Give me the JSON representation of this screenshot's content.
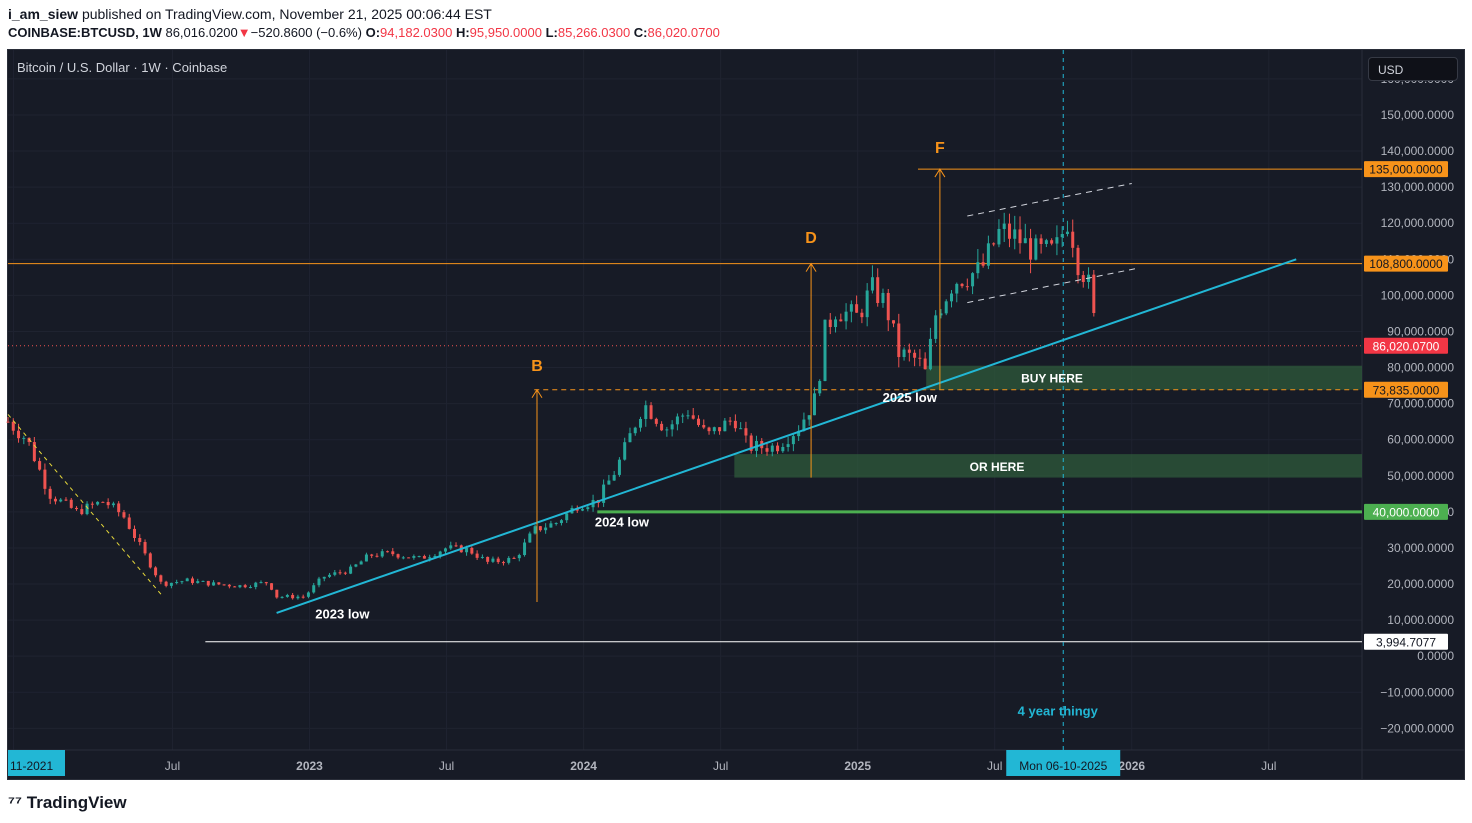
{
  "header": {
    "author": "i_am_siew",
    "published_text": "published on TradingView.com, November 21, 2025 00:06:44 EST",
    "symbol": "COINBASE:BTCUSD, 1W",
    "last": "86,016.0200",
    "change": "−520.8600 (−0.6%)",
    "o_label": "O:",
    "o_value": "94,182.0300",
    "h_label": "H:",
    "h_value": "95,950.0000",
    "l_label": "L:",
    "l_value": "85,266.0300",
    "c_label": "C:",
    "c_value": "86,020.0700"
  },
  "chart_title": "Bitcoin / U.S. Dollar · 1W · Coinbase",
  "currency_button": "USD",
  "branding": "TradingView",
  "colors": {
    "background": "#171b26",
    "up": "#26a69a",
    "down": "#ef5350",
    "trendline": "#22b7d5",
    "orange": "#f7931a",
    "green_line": "#4caf50",
    "zone": "#2f5b3b"
  },
  "chart_data": {
    "type": "candlestick",
    "title": "Bitcoin / U.S. Dollar · 1W · Coinbase",
    "ylim": [
      -26000,
      168000
    ],
    "y_ticks": [
      -20000,
      -10000,
      0,
      10000,
      20000,
      30000,
      40000,
      50000,
      60000,
      70000,
      80000,
      90000,
      100000,
      110000,
      120000,
      130000,
      140000,
      150000,
      160000
    ],
    "y_tick_labels": [
      "−20,000.0000",
      "−10,000.0000",
      "0.0000",
      "10,000.0000",
      "20,000.0000",
      "30,000.0000",
      "40,000.0000",
      "50,000.0000",
      "60,000.0000",
      "70,000.0000",
      "80,000.0000",
      "90,000.0000",
      "100,000.0000",
      "110,000.0000",
      "120,000.0000",
      "130,000.0000",
      "140,000.0000",
      "150,000.0000",
      "160,000.0000"
    ],
    "xlim": [
      2021.9,
      2026.84
    ],
    "x_ticks": [
      {
        "t": 2021.92,
        "label": "11-2021",
        "highlight": true
      },
      {
        "t": 2022.5,
        "label": "Jul"
      },
      {
        "t": 2023.0,
        "label": "2023",
        "bold": true
      },
      {
        "t": 2023.5,
        "label": "Jul"
      },
      {
        "t": 2024.0,
        "label": "2024",
        "bold": true
      },
      {
        "t": 2024.5,
        "label": "Jul"
      },
      {
        "t": 2025.0,
        "label": "2025",
        "bold": true
      },
      {
        "t": 2025.5,
        "label": "Jul"
      },
      {
        "t": 2026.0,
        "label": "2026",
        "bold": true
      },
      {
        "t": 2026.5,
        "label": "Jul"
      }
    ],
    "crosshair": {
      "t": 2025.75,
      "label": "Mon 06-10-2025"
    },
    "price_path": [
      [
        2021.9,
        65000
      ],
      [
        2021.97,
        60000
      ],
      [
        2022.05,
        45000
      ],
      [
        2022.15,
        40000
      ],
      [
        2022.25,
        43000
      ],
      [
        2022.32,
        39000
      ],
      [
        2022.4,
        28000
      ],
      [
        2022.46,
        20000
      ],
      [
        2022.55,
        21000
      ],
      [
        2022.65,
        20000
      ],
      [
        2022.75,
        19500
      ],
      [
        2022.85,
        20500
      ],
      [
        2022.88,
        16500
      ],
      [
        2022.98,
        16500
      ],
      [
        2023.05,
        22000
      ],
      [
        2023.15,
        24000
      ],
      [
        2023.22,
        28000
      ],
      [
        2023.3,
        28500
      ],
      [
        2023.4,
        27000
      ],
      [
        2023.5,
        30000
      ],
      [
        2023.58,
        29500
      ],
      [
        2023.65,
        26000
      ],
      [
        2023.75,
        27000
      ],
      [
        2023.82,
        35000
      ],
      [
        2023.9,
        37000
      ],
      [
        2023.98,
        42000
      ],
      [
        2024.05,
        43000
      ],
      [
        2024.12,
        52000
      ],
      [
        2024.18,
        63000
      ],
      [
        2024.22,
        70000
      ],
      [
        2024.3,
        63000
      ],
      [
        2024.38,
        68000
      ],
      [
        2024.45,
        61000
      ],
      [
        2024.55,
        66000
      ],
      [
        2024.6,
        58000
      ],
      [
        2024.7,
        58000
      ],
      [
        2024.78,
        63000
      ],
      [
        2024.85,
        72000
      ],
      [
        2024.88,
        90000
      ],
      [
        2024.92,
        96000
      ],
      [
        2025.0,
        94000
      ],
      [
        2025.05,
        102000
      ],
      [
        2025.1,
        98000
      ],
      [
        2025.15,
        84000
      ],
      [
        2025.22,
        82000
      ],
      [
        2025.25,
        78000
      ],
      [
        2025.28,
        94000
      ],
      [
        2025.35,
        104000
      ],
      [
        2025.45,
        107000
      ],
      [
        2025.52,
        118000
      ],
      [
        2025.58,
        116000
      ],
      [
        2025.65,
        112000
      ],
      [
        2025.72,
        112000
      ],
      [
        2025.77,
        122000
      ],
      [
        2025.8,
        110000
      ],
      [
        2025.84,
        104000
      ],
      [
        2025.86,
        94000
      ],
      [
        2025.88,
        86020
      ]
    ],
    "lines": [
      {
        "name": "resistance",
        "value": 108800,
        "label": "108,800.0000"
      },
      {
        "name": "target-F",
        "value": 135000,
        "label": "135,000.0000"
      },
      {
        "name": "dashed-support",
        "value": 73835,
        "label": "73,835.0000"
      },
      {
        "name": "support",
        "value": 40000,
        "label": "40,000.0000"
      },
      {
        "name": "low-line",
        "value": 3994.7077,
        "label": "3,994.7077"
      },
      {
        "name": "last-price",
        "value": 86020.07,
        "label": "86,020.0700"
      }
    ],
    "zones": [
      {
        "label": "BUY HERE",
        "from": 73835,
        "to": 80500,
        "t0": 2025.25,
        "t1": 2026.84
      },
      {
        "label": "OR HERE",
        "from": 49500,
        "to": 56000,
        "t0": 2024.55,
        "t1": 2026.84
      }
    ],
    "trendline": {
      "t0": 2022.88,
      "p0": 12000,
      "t1": 2026.6,
      "p1": 110000
    },
    "annotations": [
      {
        "text": "2023 low",
        "t": 2023.12,
        "p": 10500
      },
      {
        "text": "2024 low",
        "t": 2024.14,
        "p": 36000
      },
      {
        "text": "2025 low",
        "t": 2025.19,
        "p": 70500
      },
      {
        "text": "4 year thingy",
        "t": 2025.73,
        "p": -16500
      }
    ],
    "wave_labels": [
      {
        "text": "B",
        "t": 2023.83,
        "p": 79000
      },
      {
        "text": "D",
        "t": 2024.83,
        "p": 114500
      },
      {
        "text": "F",
        "t": 2025.3,
        "p": 139500
      }
    ]
  }
}
